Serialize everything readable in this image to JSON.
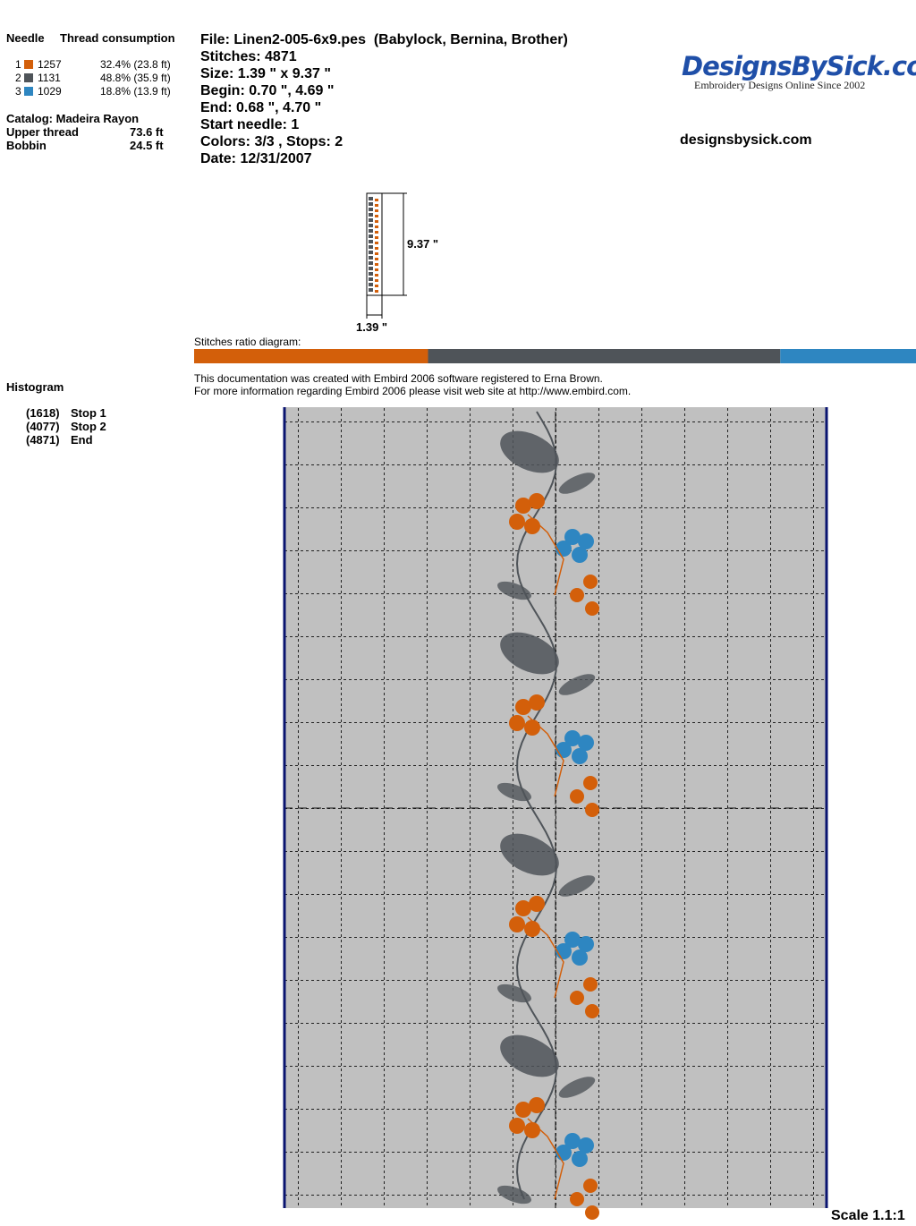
{
  "header": {
    "needle_label": "Needle",
    "thread_label": "Thread consumption"
  },
  "threads": [
    {
      "needle": "1",
      "color": "#d35f0a",
      "code": "1257",
      "share": {
        "value": 32.4,
        "label": "32.4% (23.8 ft)"
      }
    },
    {
      "needle": "2",
      "color": "#4f5459",
      "code": "1131",
      "share": {
        "value": 48.8,
        "label": "48.8% (35.9 ft)"
      }
    },
    {
      "needle": "3",
      "color": "#2e86c1",
      "code": "1029",
      "share": {
        "value": 18.8,
        "label": "18.8% (13.9 ft)"
      }
    }
  ],
  "catalog": "Catalog: Madeira Rayon",
  "consumption": [
    {
      "label": "Upper thread",
      "value": "73.6 ft"
    },
    {
      "label": "Bobbin",
      "value": "24.5 ft"
    }
  ],
  "file_info": [
    "File: Linen2-005-6x9.pes  (Babylock, Bernina, Brother)",
    "Stitches: 4871",
    "Size: 1.39 \" x 9.37 \"",
    "Begin: 0.70 \", 4.69 \"",
    "End: 0.68 \", 4.70 \"",
    "Start needle: 1",
    "Colors: 3/3 , Stops: 2",
    "Date: 12/31/2007"
  ],
  "logo": {
    "name": "DesignsBySick.com",
    "tagline": "Embroidery Designs Online Since 2002",
    "site": "designsbysick.com"
  },
  "thumbnail": {
    "height_label": "9.37 \"",
    "width_label": "1.39 \""
  },
  "ratio_title": "Stitches ratio diagram:",
  "notes": [
    "This documentation was created with Embird 2006 software registered to Erna Brown.",
    "For more information regarding Embird 2006 please visit web site at http://www.embird.com."
  ],
  "histogram": {
    "title": "Histogram",
    "stops": [
      {
        "count": "(1618)",
        "label": "Stop 1"
      },
      {
        "count": "(4077)",
        "label": "Stop 2"
      },
      {
        "count": "(4871)",
        "label": "End"
      }
    ]
  },
  "scale": "Scale 1.1:1"
}
